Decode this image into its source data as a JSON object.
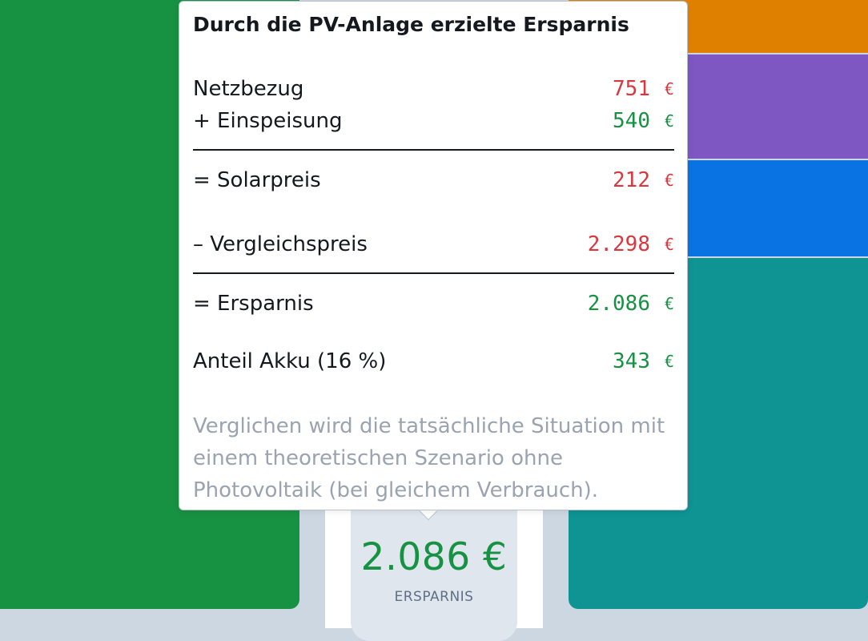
{
  "colors": {
    "green": "#179142",
    "orange": "#e08000",
    "purple": "#7e57c2",
    "blue": "#0a73e3",
    "teal": "#0f9393",
    "negative": "#d9363e",
    "positive": "#179142"
  },
  "tooltip": {
    "title": "Durch die PV-Anlage erzielte Ersparnis",
    "rows": [
      {
        "label": "Netzbezug",
        "value": "751",
        "unit": "€"
      },
      {
        "label": "+ Einspeisung",
        "value": "540",
        "unit": "€"
      },
      {
        "label": "= Solarpreis",
        "value": "212",
        "unit": "€"
      },
      {
        "label": "– Vergleichspreis",
        "value": "2.298",
        "unit": "€"
      },
      {
        "label": "= Ersparnis",
        "value": "2.086",
        "unit": "€"
      },
      {
        "label": "Anteil Akku (16 %)",
        "value": "343",
        "unit": "€"
      }
    ],
    "note": "Verglichen wird die tatsächliche Situation mit einem theoretischen Szenario ohne Photovoltaik (bei gleichem Verbrauch)."
  },
  "savings": {
    "value": "2.086 €",
    "label": "ERSPARNIS"
  }
}
